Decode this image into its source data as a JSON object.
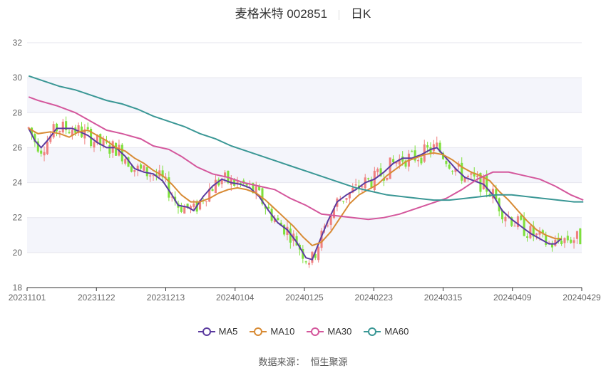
{
  "header": {
    "stock_name": "麦格米特 002851",
    "period": "日K"
  },
  "source": {
    "label": "数据来源：",
    "value": "恒生聚源"
  },
  "chart_data": {
    "type": "candlestick",
    "ylim": [
      18,
      32
    ],
    "yticks": [
      18,
      20,
      22,
      24,
      26,
      28,
      30,
      32
    ],
    "xticks": [
      "20231101",
      "20231122",
      "20231213",
      "20240104",
      "20240125",
      "20240223",
      "20240315",
      "20240409",
      "20240429"
    ],
    "colors": {
      "up": "#f08080",
      "down": "#7ee03c"
    },
    "legend": [
      {
        "name": "MA5",
        "color": "#5b3b9f"
      },
      {
        "name": "MA10",
        "color": "#d88b35"
      },
      {
        "name": "MA30",
        "color": "#d4579c"
      },
      {
        "name": "MA60",
        "color": "#3a9795"
      }
    ],
    "ma_series": {
      "MA5": [
        [
          0,
          27.1
        ],
        [
          2,
          26.4
        ],
        [
          4,
          26.0
        ],
        [
          6,
          26.4
        ],
        [
          9,
          27.1
        ],
        [
          14,
          27.1
        ],
        [
          19,
          26.7
        ],
        [
          22,
          26.3
        ],
        [
          25,
          26.0
        ],
        [
          28,
          26.0
        ],
        [
          31,
          25.5
        ],
        [
          34,
          24.8
        ],
        [
          37,
          24.6
        ],
        [
          40,
          24.5
        ],
        [
          43,
          24.1
        ],
        [
          46,
          23.3
        ],
        [
          48,
          22.7
        ],
        [
          51,
          22.6
        ],
        [
          53,
          22.4
        ],
        [
          56,
          23.2
        ],
        [
          59,
          23.8
        ],
        [
          62,
          24.2
        ],
        [
          65,
          24.0
        ],
        [
          68,
          23.9
        ],
        [
          71,
          23.7
        ],
        [
          74,
          23.2
        ],
        [
          77,
          22.4
        ],
        [
          80,
          21.7
        ],
        [
          83,
          21.3
        ],
        [
          86,
          20.6
        ],
        [
          89,
          19.7
        ],
        [
          91,
          19.6
        ],
        [
          93,
          20.5
        ],
        [
          96,
          21.8
        ],
        [
          99,
          22.9
        ],
        [
          102,
          23.3
        ],
        [
          105,
          23.6
        ],
        [
          108,
          24.0
        ],
        [
          111,
          24.2
        ],
        [
          114,
          24.6
        ],
        [
          117,
          25.1
        ],
        [
          120,
          25.4
        ],
        [
          123,
          25.4
        ],
        [
          126,
          25.6
        ],
        [
          129,
          25.9
        ],
        [
          131,
          26.0
        ],
        [
          134,
          25.4
        ],
        [
          137,
          24.8
        ],
        [
          140,
          24.3
        ],
        [
          143,
          24.1
        ],
        [
          146,
          23.9
        ],
        [
          149,
          23.3
        ],
        [
          152,
          22.4
        ],
        [
          155,
          21.9
        ],
        [
          158,
          21.5
        ],
        [
          161,
          21.1
        ],
        [
          164,
          20.8
        ],
        [
          167,
          20.5
        ],
        [
          169,
          20.5
        ],
        [
          171,
          20.8
        ]
      ],
      "MA10": [
        [
          0,
          27.1
        ],
        [
          3,
          26.8
        ],
        [
          7,
          26.9
        ],
        [
          10,
          26.8
        ],
        [
          13,
          26.6
        ],
        [
          16,
          26.9
        ],
        [
          19,
          27.0
        ],
        [
          22,
          26.7
        ],
        [
          25,
          26.4
        ],
        [
          28,
          26.0
        ],
        [
          31,
          25.8
        ],
        [
          34,
          25.4
        ],
        [
          37,
          25.1
        ],
        [
          40,
          24.7
        ],
        [
          43,
          24.4
        ],
        [
          46,
          23.9
        ],
        [
          49,
          23.3
        ],
        [
          52,
          22.9
        ],
        [
          55,
          22.9
        ],
        [
          58,
          23.1
        ],
        [
          61,
          23.4
        ],
        [
          64,
          23.6
        ],
        [
          67,
          23.7
        ],
        [
          70,
          23.6
        ],
        [
          73,
          23.4
        ],
        [
          76,
          23.0
        ],
        [
          79,
          22.5
        ],
        [
          82,
          22.0
        ],
        [
          85,
          21.5
        ],
        [
          88,
          20.9
        ],
        [
          91,
          20.4
        ],
        [
          94,
          20.6
        ],
        [
          97,
          21.2
        ],
        [
          100,
          22.0
        ],
        [
          103,
          22.8
        ],
        [
          106,
          23.3
        ],
        [
          109,
          23.6
        ],
        [
          112,
          23.9
        ],
        [
          115,
          24.4
        ],
        [
          118,
          24.8
        ],
        [
          121,
          25.2
        ],
        [
          124,
          25.4
        ],
        [
          127,
          25.6
        ],
        [
          130,
          25.7
        ],
        [
          133,
          25.6
        ],
        [
          136,
          25.3
        ],
        [
          139,
          24.9
        ],
        [
          142,
          24.6
        ],
        [
          145,
          24.4
        ],
        [
          148,
          24.1
        ],
        [
          151,
          23.5
        ],
        [
          154,
          23.0
        ],
        [
          157,
          22.4
        ],
        [
          160,
          21.8
        ],
        [
          163,
          21.3
        ],
        [
          166,
          21.0
        ],
        [
          169,
          20.8
        ],
        [
          171,
          20.8
        ]
      ],
      "MA30": [
        [
          0,
          28.9
        ],
        [
          3,
          28.7
        ],
        [
          9,
          28.4
        ],
        [
          15,
          28.0
        ],
        [
          20,
          27.5
        ],
        [
          25,
          27.0
        ],
        [
          30,
          26.8
        ],
        [
          36,
          26.5
        ],
        [
          40,
          26.1
        ],
        [
          45,
          25.9
        ],
        [
          49,
          25.5
        ],
        [
          54,
          24.9
        ],
        [
          59,
          24.5
        ],
        [
          64,
          24.3
        ],
        [
          69,
          24.0
        ],
        [
          74,
          23.8
        ],
        [
          79,
          23.6
        ],
        [
          84,
          23.1
        ],
        [
          89,
          22.7
        ],
        [
          94,
          22.2
        ],
        [
          99,
          22.1
        ],
        [
          104,
          22.0
        ],
        [
          109,
          21.9
        ],
        [
          114,
          22.0
        ],
        [
          119,
          22.2
        ],
        [
          124,
          22.5
        ],
        [
          129,
          22.8
        ],
        [
          134,
          23.1
        ],
        [
          139,
          23.6
        ],
        [
          144,
          24.2
        ],
        [
          149,
          24.6
        ],
        [
          154,
          24.6
        ],
        [
          159,
          24.4
        ],
        [
          164,
          24.2
        ],
        [
          169,
          23.8
        ],
        [
          174,
          23.3
        ],
        [
          178,
          23.0
        ]
      ],
      "MA60": [
        [
          0,
          30.1
        ],
        [
          5,
          29.8
        ],
        [
          10,
          29.5
        ],
        [
          15,
          29.3
        ],
        [
          20,
          29.0
        ],
        [
          25,
          28.7
        ],
        [
          30,
          28.5
        ],
        [
          35,
          28.2
        ],
        [
          40,
          27.8
        ],
        [
          45,
          27.5
        ],
        [
          50,
          27.2
        ],
        [
          55,
          26.8
        ],
        [
          60,
          26.5
        ],
        [
          65,
          26.1
        ],
        [
          70,
          25.8
        ],
        [
          75,
          25.5
        ],
        [
          80,
          25.2
        ],
        [
          85,
          24.9
        ],
        [
          90,
          24.6
        ],
        [
          95,
          24.3
        ],
        [
          100,
          24.0
        ],
        [
          105,
          23.7
        ],
        [
          110,
          23.5
        ],
        [
          115,
          23.3
        ],
        [
          120,
          23.2
        ],
        [
          125,
          23.1
        ],
        [
          130,
          23.0
        ],
        [
          135,
          23.0
        ],
        [
          140,
          23.1
        ],
        [
          145,
          23.2
        ],
        [
          150,
          23.3
        ],
        [
          155,
          23.3
        ],
        [
          160,
          23.2
        ],
        [
          165,
          23.1
        ],
        [
          170,
          23.0
        ],
        [
          175,
          22.9
        ],
        [
          178,
          22.9
        ]
      ]
    }
  }
}
